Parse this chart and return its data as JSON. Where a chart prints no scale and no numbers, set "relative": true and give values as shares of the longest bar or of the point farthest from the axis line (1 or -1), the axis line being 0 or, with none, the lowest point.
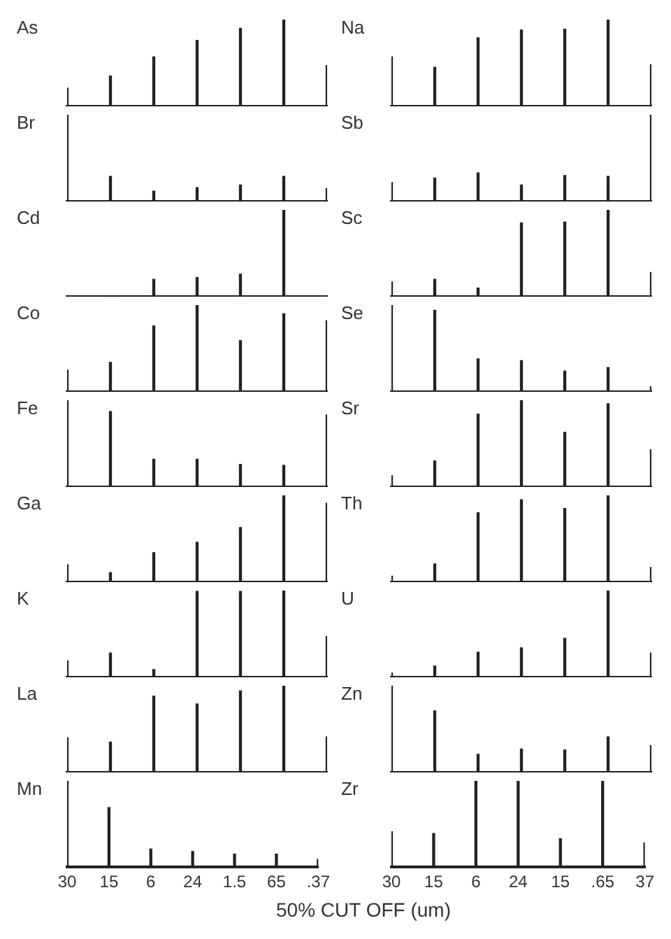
{
  "chart_data": [
    {
      "type": "bar",
      "title": "As",
      "relative": true,
      "tick_labels": false,
      "categories": [
        null,
        null,
        null,
        null,
        null,
        null,
        null
      ],
      "color": "#222222",
      "values": [
        0.21,
        0.35,
        0.57,
        0.76,
        0.9,
        1,
        0.47
      ]
    },
    {
      "type": "bar",
      "title": "Na",
      "relative": true,
      "tick_labels": false,
      "categories": [
        null,
        null,
        null,
        null,
        null,
        null,
        null
      ],
      "color": "#222222",
      "values": [
        0.57,
        0.45,
        0.79,
        0.88,
        0.89,
        1,
        0.48
      ]
    },
    {
      "type": "bar",
      "title": "Br",
      "relative": true,
      "tick_labels": false,
      "categories": [
        null,
        null,
        null,
        null,
        null,
        null,
        null
      ],
      "color": "#222222",
      "values": [
        1,
        0.29,
        0.12,
        0.16,
        0.19,
        0.29,
        0.15
      ]
    },
    {
      "type": "bar",
      "title": "Sb",
      "relative": true,
      "tick_labels": false,
      "categories": [
        null,
        null,
        null,
        null,
        null,
        null,
        null
      ],
      "color": "#222222",
      "values": [
        0.22,
        0.27,
        0.33,
        0.19,
        0.3,
        0.29,
        1
      ]
    },
    {
      "type": "bar",
      "title": "Cd",
      "relative": true,
      "tick_labels": false,
      "categories": [
        null,
        null,
        null,
        null,
        null,
        null,
        null
      ],
      "color": "#222222",
      "values": [
        0,
        0,
        0.2,
        0.22,
        0.26,
        1,
        0
      ]
    },
    {
      "type": "bar",
      "title": "Sc",
      "relative": true,
      "tick_labels": false,
      "categories": [
        null,
        null,
        null,
        null,
        null,
        null,
        null
      ],
      "color": "#222222",
      "values": [
        0.17,
        0.2,
        0.1,
        0.85,
        0.86,
        1,
        0.28
      ]
    },
    {
      "type": "bar",
      "title": "Co",
      "relative": true,
      "tick_labels": false,
      "categories": [
        null,
        null,
        null,
        null,
        null,
        null,
        null
      ],
      "color": "#222222",
      "values": [
        0.25,
        0.34,
        0.76,
        1,
        0.59,
        0.9,
        0.82
      ]
    },
    {
      "type": "bar",
      "title": "Se",
      "relative": true,
      "tick_labels": false,
      "categories": [
        null,
        null,
        null,
        null,
        null,
        null,
        null
      ],
      "color": "#222222",
      "values": [
        1,
        0.94,
        0.38,
        0.36,
        0.24,
        0.28,
        0.06
      ]
    },
    {
      "type": "bar",
      "title": "Fe",
      "relative": true,
      "tick_labels": false,
      "categories": [
        null,
        null,
        null,
        null,
        null,
        null,
        null
      ],
      "color": "#222222",
      "values": [
        1,
        0.87,
        0.32,
        0.32,
        0.26,
        0.25,
        0.83
      ]
    },
    {
      "type": "bar",
      "title": "Sr",
      "relative": true,
      "tick_labels": false,
      "categories": [
        null,
        null,
        null,
        null,
        null,
        null,
        null
      ],
      "color": "#222222",
      "values": [
        0.13,
        0.3,
        0.84,
        1,
        0.63,
        0.96,
        0.43
      ]
    },
    {
      "type": "bar",
      "title": "Ga",
      "relative": true,
      "tick_labels": false,
      "categories": [
        null,
        null,
        null,
        null,
        null,
        null,
        null
      ],
      "color": "#222222",
      "values": [
        0.2,
        0.11,
        0.34,
        0.46,
        0.63,
        1,
        0.91
      ]
    },
    {
      "type": "bar",
      "title": "Th",
      "relative": true,
      "tick_labels": false,
      "categories": [
        null,
        null,
        null,
        null,
        null,
        null,
        null
      ],
      "color": "#222222",
      "values": [
        0.07,
        0.21,
        0.8,
        0.95,
        0.85,
        1,
        0.17
      ]
    },
    {
      "type": "bar",
      "title": "K",
      "relative": true,
      "tick_labels": false,
      "categories": [
        null,
        null,
        null,
        null,
        null,
        null,
        null
      ],
      "color": "#222222",
      "values": [
        0.19,
        0.28,
        0.09,
        0.99,
        0.99,
        1,
        0.47
      ]
    },
    {
      "type": "bar",
      "title": "U",
      "relative": true,
      "tick_labels": false,
      "categories": [
        null,
        null,
        null,
        null,
        null,
        null,
        null
      ],
      "color": "#222222",
      "values": [
        0.05,
        0.13,
        0.29,
        0.34,
        0.45,
        1,
        0.28
      ]
    },
    {
      "type": "bar",
      "title": "La",
      "relative": true,
      "tick_labels": false,
      "categories": [
        null,
        null,
        null,
        null,
        null,
        null,
        null
      ],
      "color": "#222222",
      "values": [
        0.4,
        0.35,
        0.88,
        0.79,
        0.94,
        1,
        0.41
      ]
    },
    {
      "type": "bar",
      "title": "Zn",
      "relative": true,
      "tick_labels": false,
      "categories": [
        null,
        null,
        null,
        null,
        null,
        null,
        null
      ],
      "color": "#222222",
      "values": [
        1,
        0.71,
        0.21,
        0.27,
        0.26,
        0.41,
        0.31
      ]
    },
    {
      "type": "bar",
      "title": "Mn",
      "relative": true,
      "categories": [
        "30",
        "15",
        "6",
        "24",
        "1.5",
        "65",
        ".37"
      ],
      "color": "#222222",
      "values": [
        1,
        0.69,
        0.21,
        0.18,
        0.15,
        0.15,
        0.09
      ],
      "xlabel": "50% CUT OFF (um)"
    },
    {
      "type": "bar",
      "title": "Zr",
      "relative": true,
      "categories": [
        "30",
        "15",
        "6",
        "24",
        "15",
        ".65",
        "37"
      ],
      "color": "#222222",
      "values": [
        0.41,
        0.39,
        1,
        1,
        0.33,
        1,
        0.28
      ]
    }
  ]
}
